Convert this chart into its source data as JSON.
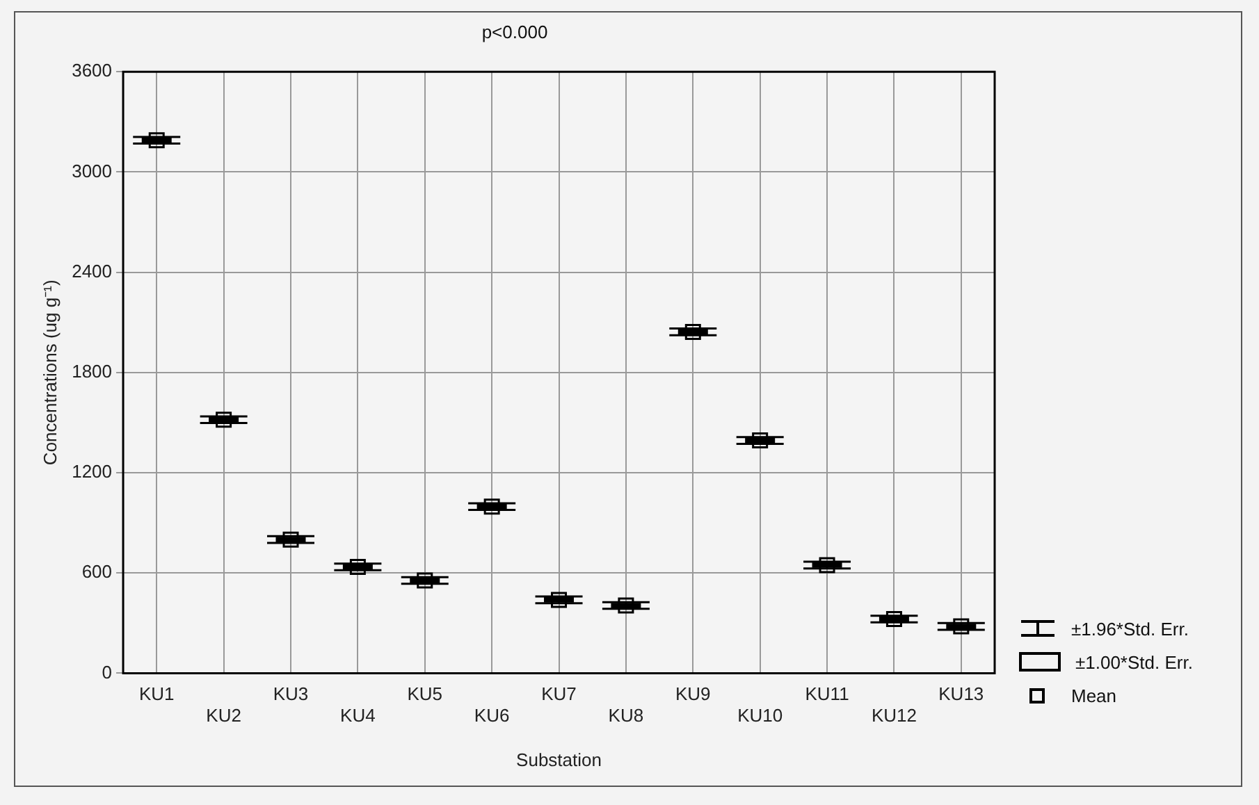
{
  "chart_data": {
    "type": "box",
    "title": "p<0.000",
    "xlabel": "Substation",
    "ylabel": "Concentrations (ug g⁻¹)",
    "categories": [
      "KU1",
      "KU2",
      "KU3",
      "KU4",
      "KU5",
      "KU6",
      "KU7",
      "KU8",
      "KU9",
      "KU10",
      "KU11",
      "KU12",
      "KU13"
    ],
    "series": [
      {
        "color": "#000000",
        "boxes": [
          {
            "low": 3170,
            "q1": 3180,
            "median": 3190,
            "q3": 3200,
            "high": 3210,
            "mean": 3190
          },
          {
            "low": 1497,
            "q1": 1507,
            "median": 1517,
            "q3": 1527,
            "high": 1537,
            "mean": 1517
          },
          {
            "low": 780,
            "q1": 790,
            "median": 800,
            "q3": 810,
            "high": 820,
            "mean": 800
          },
          {
            "low": 616,
            "q1": 626,
            "median": 636,
            "q3": 646,
            "high": 656,
            "mean": 636
          },
          {
            "low": 535,
            "q1": 545,
            "median": 555,
            "q3": 565,
            "high": 575,
            "mean": 555
          },
          {
            "low": 977,
            "q1": 987,
            "median": 997,
            "q3": 1007,
            "high": 1017,
            "mean": 997
          },
          {
            "low": 419,
            "q1": 429,
            "median": 439,
            "q3": 449,
            "high": 459,
            "mean": 439
          },
          {
            "low": 385,
            "q1": 395,
            "median": 405,
            "q3": 415,
            "high": 425,
            "mean": 405
          },
          {
            "low": 2023,
            "q1": 2033,
            "median": 2043,
            "q3": 2053,
            "high": 2063,
            "mean": 2043
          },
          {
            "low": 1373,
            "q1": 1383,
            "median": 1393,
            "q3": 1403,
            "high": 1413,
            "mean": 1393
          },
          {
            "low": 627,
            "q1": 637,
            "median": 647,
            "q3": 657,
            "high": 667,
            "mean": 647
          },
          {
            "low": 304,
            "q1": 314,
            "median": 324,
            "q3": 334,
            "high": 344,
            "mean": 324
          },
          {
            "low": 260,
            "q1": 270,
            "median": 280,
            "q3": 290,
            "high": 300,
            "mean": 280
          }
        ]
      }
    ],
    "ylim": [
      0,
      3600
    ],
    "yticks": [
      0,
      600,
      1200,
      1800,
      2400,
      3000,
      3600
    ],
    "grid": true,
    "annotations": [
      "±1.96*Std. Err.",
      "±1.00*Std. Err.",
      "Mean"
    ]
  }
}
